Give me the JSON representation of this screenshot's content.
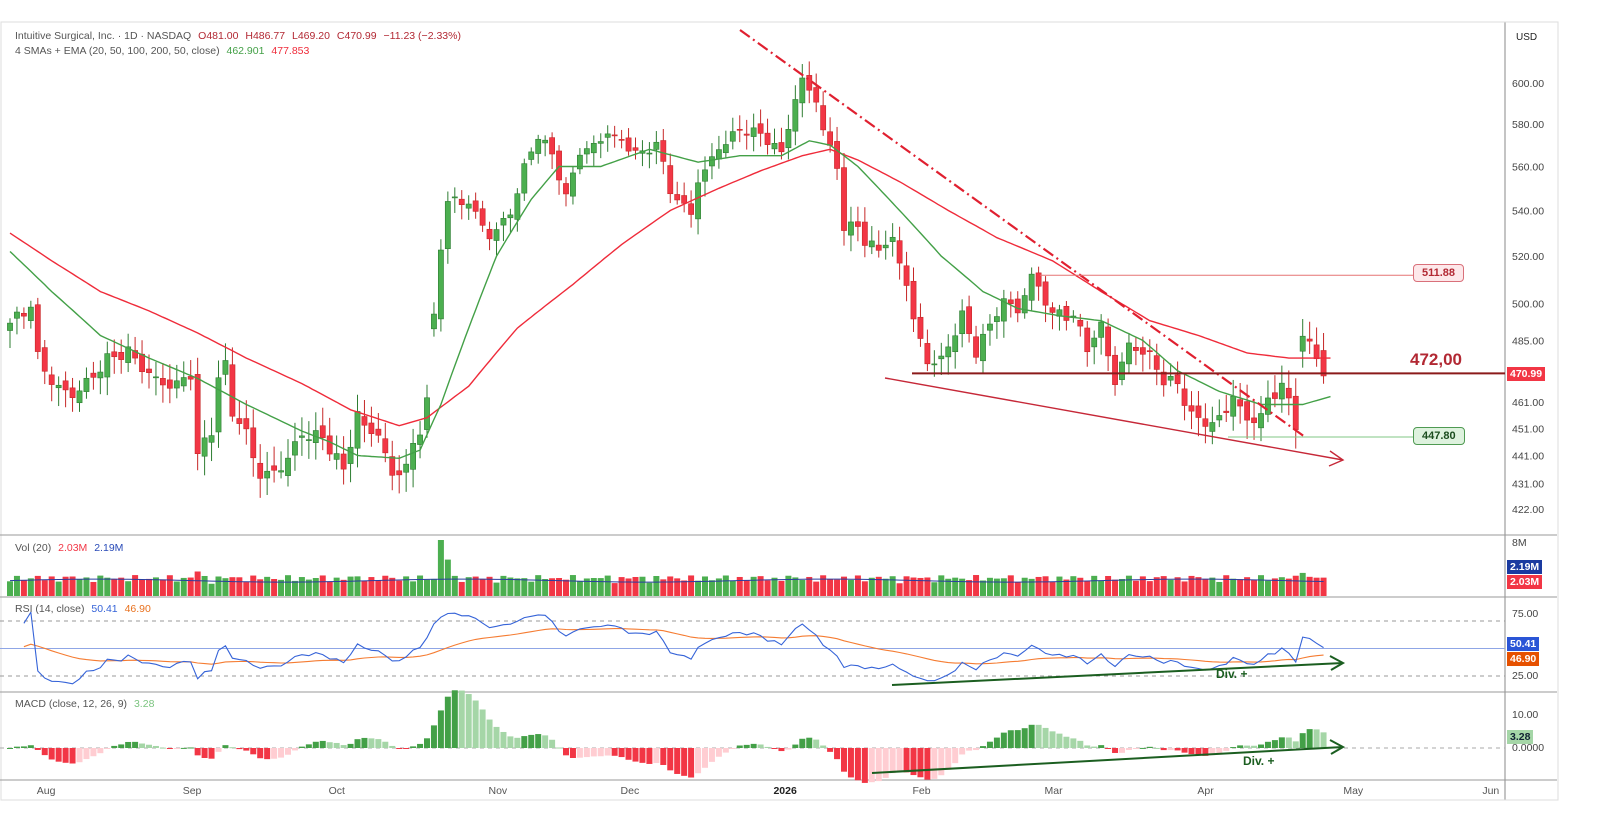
{
  "header": {
    "symbol": "Intuitive Surgical, Inc. · 1D · NASDAQ",
    "open": "O481.00",
    "high": "H486.77",
    "low": "L469.20",
    "close": "C470.99",
    "change": "−11.23 (−2.33%)"
  },
  "indicator": {
    "label": "4 SMAs + EMA (20, 50, 100, 200, 50, close)",
    "v1": "462.901",
    "v2": "477.853"
  },
  "volume": {
    "label": "Vol (20)",
    "v1": "2.03M",
    "v2": "2.19M",
    "axis": "8M",
    "tag_ma": "2.19M",
    "tag_vol": "2.03M"
  },
  "rsi": {
    "label": "RSI (14, close)",
    "v1": "50.41",
    "v2": "46.90",
    "axis": [
      "75.00",
      "25.00"
    ],
    "tag_rsi": "50.41",
    "tag_ma": "46.90",
    "annotation": "Div. +"
  },
  "macd": {
    "label": "MACD (close, 12, 26, 9)",
    "v1": "3.28",
    "axis": [
      "10.00",
      "0.0000"
    ],
    "tag": "3.28",
    "annotation": "Div. +"
  },
  "currency": "USD",
  "colors": {
    "up": "#4caf50",
    "down": "#f23645",
    "sma20": "#43a047",
    "ema50": "#ef2b3a",
    "level": "#8b1a1a"
  },
  "chart_data": {
    "type": "candlestick",
    "title": "Intuitive Surgical, Inc. · 1D · NASDAQ",
    "price_axis": [
      "600.00",
      "580.00",
      "560.00",
      "540.00",
      "520.00",
      "500.00",
      "485.00",
      "461.00",
      "451.00",
      "441.00",
      "431.00",
      "422.00"
    ],
    "price_axis_values": [
      600,
      580,
      560,
      540,
      520,
      500,
      485,
      461,
      451,
      441,
      431,
      422
    ],
    "ylim": [
      422,
      600
    ],
    "x_ticks": [
      "Aug",
      "Sep",
      "Oct",
      "Nov",
      "Dec",
      "2026",
      "Feb",
      "Mar",
      "Apr",
      "May",
      "Jun"
    ],
    "x_tick_day_index": [
      5,
      26,
      47,
      70,
      89,
      111,
      131,
      150,
      172,
      193,
      213
    ],
    "n_days": 190,
    "close_path": [
      [
        0,
        492
      ],
      [
        3,
        500
      ],
      [
        4,
        480
      ],
      [
        6,
        470
      ],
      [
        9,
        465
      ],
      [
        12,
        472
      ],
      [
        14,
        478
      ],
      [
        17,
        480
      ],
      [
        20,
        470
      ],
      [
        23,
        465
      ],
      [
        26,
        470
      ],
      [
        27,
        440
      ],
      [
        29,
        450
      ],
      [
        30,
        470
      ],
      [
        31,
        475
      ],
      [
        32,
        458
      ],
      [
        34,
        450
      ],
      [
        36,
        435
      ],
      [
        39,
        438
      ],
      [
        42,
        450
      ],
      [
        45,
        448
      ],
      [
        48,
        435
      ],
      [
        50,
        455
      ],
      [
        51,
        450
      ],
      [
        53,
        447
      ],
      [
        55,
        432
      ],
      [
        57,
        436
      ],
      [
        59,
        450
      ],
      [
        60,
        462
      ],
      [
        62,
        525
      ],
      [
        63,
        545
      ],
      [
        66,
        545
      ],
      [
        69,
        530
      ],
      [
        72,
        540
      ],
      [
        74,
        560
      ],
      [
        76,
        575
      ],
      [
        78,
        565
      ],
      [
        80,
        545
      ],
      [
        82,
        565
      ],
      [
        85,
        570
      ],
      [
        86,
        575
      ],
      [
        88,
        570
      ],
      [
        91,
        565
      ],
      [
        93,
        572
      ],
      [
        95,
        550
      ],
      [
        98,
        540
      ],
      [
        99,
        555
      ],
      [
        102,
        570
      ],
      [
        105,
        578
      ],
      [
        108,
        575
      ],
      [
        111,
        565
      ],
      [
        113,
        590
      ],
      [
        114,
        600
      ],
      [
        116,
        590
      ],
      [
        117,
        575
      ],
      [
        119,
        560
      ],
      [
        120,
        530
      ],
      [
        122,
        535
      ],
      [
        123,
        525
      ],
      [
        125,
        525
      ],
      [
        127,
        528
      ],
      [
        129,
        510
      ],
      [
        130,
        495
      ],
      [
        132,
        478
      ],
      [
        134,
        478
      ],
      [
        137,
        495
      ],
      [
        139,
        480
      ],
      [
        141,
        490
      ],
      [
        143,
        500
      ],
      [
        145,
        495
      ],
      [
        147,
        510
      ],
      [
        150,
        495
      ],
      [
        153,
        495
      ],
      [
        155,
        483
      ],
      [
        157,
        492
      ],
      [
        159,
        470
      ],
      [
        161,
        485
      ],
      [
        164,
        480
      ],
      [
        166,
        470
      ],
      [
        168,
        468
      ],
      [
        170,
        455
      ],
      [
        173,
        451
      ],
      [
        175,
        456
      ],
      [
        176,
        462
      ],
      [
        178,
        452
      ],
      [
        180,
        455
      ],
      [
        181,
        460
      ],
      [
        183,
        468
      ],
      [
        185,
        453
      ],
      [
        186,
        488
      ],
      [
        188,
        480
      ],
      [
        189,
        471
      ]
    ],
    "sma20_path": [
      [
        0,
        522
      ],
      [
        6,
        505
      ],
      [
        13,
        487
      ],
      [
        20,
        478
      ],
      [
        27,
        470
      ],
      [
        34,
        460
      ],
      [
        42,
        450
      ],
      [
        46,
        446
      ],
      [
        50,
        441
      ],
      [
        56,
        440
      ],
      [
        59,
        443
      ],
      [
        62,
        460
      ],
      [
        66,
        490
      ],
      [
        70,
        520
      ],
      [
        75,
        545
      ],
      [
        79,
        560
      ],
      [
        85,
        560
      ],
      [
        92,
        568
      ],
      [
        99,
        562
      ],
      [
        105,
        565
      ],
      [
        111,
        565
      ],
      [
        115,
        572
      ],
      [
        118,
        570
      ],
      [
        122,
        560
      ],
      [
        128,
        540
      ],
      [
        134,
        520
      ],
      [
        140,
        505
      ],
      [
        145,
        498
      ],
      [
        151,
        495
      ],
      [
        157,
        493
      ],
      [
        163,
        485
      ],
      [
        168,
        473
      ],
      [
        174,
        465
      ],
      [
        180,
        460
      ],
      [
        186,
        460
      ],
      [
        190,
        463
      ]
    ],
    "ema50_path": [
      [
        0,
        530
      ],
      [
        6,
        518
      ],
      [
        13,
        505
      ],
      [
        20,
        497
      ],
      [
        27,
        488
      ],
      [
        34,
        478
      ],
      [
        42,
        468
      ],
      [
        49,
        458
      ],
      [
        56,
        452
      ],
      [
        60,
        455
      ],
      [
        66,
        467
      ],
      [
        73,
        490
      ],
      [
        81,
        508
      ],
      [
        88,
        525
      ],
      [
        95,
        540
      ],
      [
        102,
        550
      ],
      [
        108,
        558
      ],
      [
        114,
        565
      ],
      [
        118,
        568
      ],
      [
        122,
        563
      ],
      [
        128,
        553
      ],
      [
        135,
        540
      ],
      [
        142,
        528
      ],
      [
        150,
        518
      ],
      [
        157,
        505
      ],
      [
        164,
        493
      ],
      [
        171,
        487
      ],
      [
        178,
        480
      ],
      [
        184,
        478
      ],
      [
        190,
        478
      ]
    ],
    "levels": [
      {
        "value": 472,
        "label": "472,00"
      },
      {
        "value": 511.88,
        "label": "511.88"
      },
      {
        "value": 447.8,
        "label": "447.80"
      }
    ],
    "last_price": "470.99",
    "volume_spikes": [
      [
        27,
        3.5
      ],
      [
        62,
        8
      ],
      [
        63,
        5.2
      ],
      [
        186,
        3.3
      ]
    ]
  }
}
